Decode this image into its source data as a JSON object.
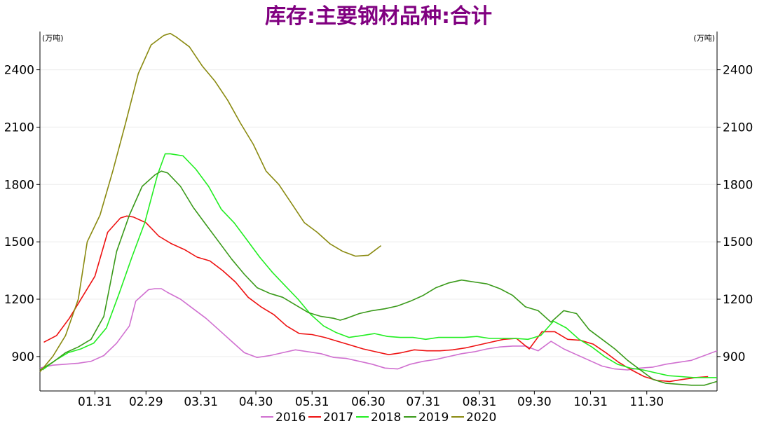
{
  "chart_data": {
    "type": "line",
    "title": "库存:主要钢材品种:合计",
    "unit_left": "(万吨)",
    "unit_right": "(万吨)",
    "ylim": [
      720,
      2600
    ],
    "yticks": [
      900,
      1200,
      1500,
      1800,
      2100,
      2400
    ],
    "xlim": [
      0,
      53
    ],
    "xticks": [
      {
        "x": 4.3,
        "label": "01.31"
      },
      {
        "x": 8.3,
        "label": "02.29"
      },
      {
        "x": 12.6,
        "label": "03.31"
      },
      {
        "x": 16.9,
        "label": "04.30"
      },
      {
        "x": 21.3,
        "label": "05.31"
      },
      {
        "x": 25.7,
        "label": "06.30"
      },
      {
        "x": 30.0,
        "label": "07.31"
      },
      {
        "x": 34.4,
        "label": "08.31"
      },
      {
        "x": 38.7,
        "label": "09.30"
      },
      {
        "x": 43.1,
        "label": "10.31"
      },
      {
        "x": 47.5,
        "label": "11.30"
      }
    ],
    "grid": true,
    "legend_position": "bottom",
    "series": [
      {
        "name": "2016",
        "color": "#d070d0",
        "points": [
          [
            0,
            840
          ],
          [
            1,
            855
          ],
          [
            2,
            860
          ],
          [
            3,
            865
          ],
          [
            4,
            875
          ],
          [
            5,
            905
          ],
          [
            6,
            970
          ],
          [
            7,
            1060
          ],
          [
            7.5,
            1190
          ],
          [
            8,
            1220
          ],
          [
            8.5,
            1250
          ],
          [
            9,
            1255
          ],
          [
            9.5,
            1255
          ],
          [
            10,
            1235
          ],
          [
            11,
            1200
          ],
          [
            12,
            1150
          ],
          [
            13,
            1100
          ],
          [
            14,
            1040
          ],
          [
            15,
            980
          ],
          [
            16,
            920
          ],
          [
            17,
            895
          ],
          [
            18,
            905
          ],
          [
            19,
            920
          ],
          [
            20,
            935
          ],
          [
            21,
            925
          ],
          [
            22,
            915
          ],
          [
            23,
            895
          ],
          [
            24,
            890
          ],
          [
            25,
            875
          ],
          [
            26,
            860
          ],
          [
            27,
            840
          ],
          [
            28,
            835
          ],
          [
            29,
            860
          ],
          [
            30,
            875
          ],
          [
            31,
            885
          ],
          [
            32,
            900
          ],
          [
            33,
            915
          ],
          [
            34,
            925
          ],
          [
            35,
            940
          ],
          [
            36,
            950
          ],
          [
            37,
            955
          ],
          [
            38,
            955
          ],
          [
            39,
            930
          ],
          [
            40,
            980
          ],
          [
            41,
            940
          ],
          [
            42,
            910
          ],
          [
            43,
            880
          ],
          [
            44,
            850
          ],
          [
            45,
            835
          ],
          [
            46,
            830
          ],
          [
            47,
            840
          ],
          [
            48,
            845
          ],
          [
            49,
            860
          ],
          [
            50,
            870
          ],
          [
            51,
            880
          ],
          [
            52,
            905
          ],
          [
            53,
            930
          ]
        ]
      },
      {
        "name": "2017",
        "color": "#ee1111",
        "points": [
          [
            0.3,
            975
          ],
          [
            1.3,
            1010
          ],
          [
            2.3,
            1100
          ],
          [
            3.3,
            1210
          ],
          [
            4.3,
            1320
          ],
          [
            5.3,
            1550
          ],
          [
            6.3,
            1625
          ],
          [
            6.8,
            1635
          ],
          [
            7.3,
            1630
          ],
          [
            8.3,
            1600
          ],
          [
            9.3,
            1530
          ],
          [
            10.3,
            1490
          ],
          [
            11.3,
            1460
          ],
          [
            12.3,
            1420
          ],
          [
            13.3,
            1400
          ],
          [
            14.3,
            1350
          ],
          [
            15.3,
            1290
          ],
          [
            16.3,
            1210
          ],
          [
            17.3,
            1160
          ],
          [
            18.3,
            1120
          ],
          [
            19.3,
            1060
          ],
          [
            20.3,
            1020
          ],
          [
            21.3,
            1015
          ],
          [
            22.3,
            1000
          ],
          [
            23.3,
            980
          ],
          [
            24.3,
            960
          ],
          [
            25.3,
            940
          ],
          [
            26.3,
            925
          ],
          [
            27.3,
            910
          ],
          [
            28.3,
            920
          ],
          [
            29.3,
            935
          ],
          [
            30.3,
            930
          ],
          [
            31.3,
            930
          ],
          [
            32.3,
            935
          ],
          [
            33.3,
            945
          ],
          [
            34.3,
            960
          ],
          [
            35.3,
            975
          ],
          [
            36.3,
            990
          ],
          [
            37.3,
            995
          ],
          [
            38.3,
            940
          ],
          [
            39.3,
            1030
          ],
          [
            40.3,
            1030
          ],
          [
            41.3,
            990
          ],
          [
            42.3,
            985
          ],
          [
            43.3,
            965
          ],
          [
            44.3,
            920
          ],
          [
            45.3,
            870
          ],
          [
            46.3,
            830
          ],
          [
            47.3,
            795
          ],
          [
            48.3,
            775
          ],
          [
            49.3,
            770
          ],
          [
            50.3,
            780
          ],
          [
            51.3,
            790
          ],
          [
            52.3,
            795
          ]
        ]
      },
      {
        "name": "2018",
        "color": "#22ee22",
        "points": [
          [
            0.2,
            830
          ],
          [
            1.2,
            880
          ],
          [
            2.2,
            920
          ],
          [
            3.2,
            940
          ],
          [
            4.2,
            970
          ],
          [
            5.2,
            1050
          ],
          [
            6.2,
            1230
          ],
          [
            7.2,
            1420
          ],
          [
            8.2,
            1600
          ],
          [
            9.2,
            1850
          ],
          [
            9.8,
            1960
          ],
          [
            10.2,
            1960
          ],
          [
            11.2,
            1950
          ],
          [
            12.2,
            1880
          ],
          [
            13.2,
            1790
          ],
          [
            14.2,
            1670
          ],
          [
            15.2,
            1600
          ],
          [
            16.2,
            1510
          ],
          [
            17.2,
            1420
          ],
          [
            18.2,
            1340
          ],
          [
            19.2,
            1270
          ],
          [
            20.2,
            1200
          ],
          [
            21.2,
            1120
          ],
          [
            22.2,
            1060
          ],
          [
            23.2,
            1025
          ],
          [
            24.2,
            1000
          ],
          [
            25.2,
            1010
          ],
          [
            26.2,
            1020
          ],
          [
            27.2,
            1005
          ],
          [
            28.2,
            1000
          ],
          [
            29.2,
            1000
          ],
          [
            30.2,
            990
          ],
          [
            31.2,
            1000
          ],
          [
            32.2,
            1000
          ],
          [
            33.2,
            1000
          ],
          [
            34.2,
            1005
          ],
          [
            35.2,
            995
          ],
          [
            36.2,
            995
          ],
          [
            37.2,
            995
          ],
          [
            38.2,
            990
          ],
          [
            39.2,
            1010
          ],
          [
            40.2,
            1085
          ],
          [
            41.2,
            1050
          ],
          [
            42.2,
            990
          ],
          [
            43.2,
            950
          ],
          [
            44.2,
            900
          ],
          [
            45.2,
            860
          ],
          [
            46.2,
            840
          ],
          [
            47.2,
            830
          ],
          [
            48.2,
            815
          ],
          [
            49.2,
            800
          ],
          [
            50.2,
            795
          ],
          [
            51.2,
            790
          ],
          [
            52.2,
            790
          ],
          [
            53,
            790
          ]
        ]
      },
      {
        "name": "2019",
        "color": "#3a9a1a",
        "points": [
          [
            0,
            830
          ],
          [
            1,
            870
          ],
          [
            2,
            920
          ],
          [
            3,
            950
          ],
          [
            4,
            990
          ],
          [
            5,
            1110
          ],
          [
            6,
            1450
          ],
          [
            7,
            1640
          ],
          [
            8,
            1790
          ],
          [
            9,
            1850
          ],
          [
            9.5,
            1870
          ],
          [
            10,
            1860
          ],
          [
            11,
            1790
          ],
          [
            12,
            1680
          ],
          [
            13,
            1590
          ],
          [
            14,
            1500
          ],
          [
            15,
            1410
          ],
          [
            16,
            1330
          ],
          [
            17,
            1260
          ],
          [
            18,
            1230
          ],
          [
            19,
            1210
          ],
          [
            20,
            1170
          ],
          [
            21,
            1130
          ],
          [
            22,
            1110
          ],
          [
            23,
            1100
          ],
          [
            23.5,
            1090
          ],
          [
            24,
            1100
          ],
          [
            25,
            1125
          ],
          [
            26,
            1140
          ],
          [
            27,
            1150
          ],
          [
            28,
            1165
          ],
          [
            29,
            1190
          ],
          [
            30,
            1220
          ],
          [
            31,
            1260
          ],
          [
            32,
            1285
          ],
          [
            33,
            1300
          ],
          [
            34,
            1290
          ],
          [
            35,
            1280
          ],
          [
            36,
            1255
          ],
          [
            37,
            1220
          ],
          [
            38,
            1160
          ],
          [
            39,
            1140
          ],
          [
            40,
            1080
          ],
          [
            41,
            1140
          ],
          [
            42,
            1125
          ],
          [
            43,
            1040
          ],
          [
            44,
            990
          ],
          [
            45,
            940
          ],
          [
            46,
            880
          ],
          [
            47,
            830
          ],
          [
            48,
            780
          ],
          [
            49,
            760
          ],
          [
            50,
            755
          ],
          [
            51,
            750
          ],
          [
            52,
            750
          ],
          [
            53,
            770
          ]
        ]
      },
      {
        "name": "2020",
        "color": "#8a8a10",
        "points": [
          [
            0,
            820
          ],
          [
            1,
            900
          ],
          [
            2,
            1010
          ],
          [
            3,
            1200
          ],
          [
            3.7,
            1500
          ],
          [
            4.7,
            1640
          ],
          [
            5.7,
            1870
          ],
          [
            6.7,
            2120
          ],
          [
            7.7,
            2380
          ],
          [
            8.7,
            2530
          ],
          [
            9.7,
            2580
          ],
          [
            10.2,
            2590
          ],
          [
            10.7,
            2570
          ],
          [
            11.7,
            2520
          ],
          [
            12.7,
            2420
          ],
          [
            13.7,
            2340
          ],
          [
            14.7,
            2240
          ],
          [
            15.7,
            2120
          ],
          [
            16.7,
            2010
          ],
          [
            17.7,
            1870
          ],
          [
            18.7,
            1800
          ],
          [
            19.7,
            1700
          ],
          [
            20.7,
            1600
          ],
          [
            21.7,
            1550
          ],
          [
            22.7,
            1490
          ],
          [
            23.7,
            1450
          ],
          [
            24.7,
            1425
          ],
          [
            25.7,
            1430
          ],
          [
            26.7,
            1480
          ]
        ]
      }
    ]
  },
  "legend": [
    "2016",
    "2017",
    "2018",
    "2019",
    "2020"
  ]
}
